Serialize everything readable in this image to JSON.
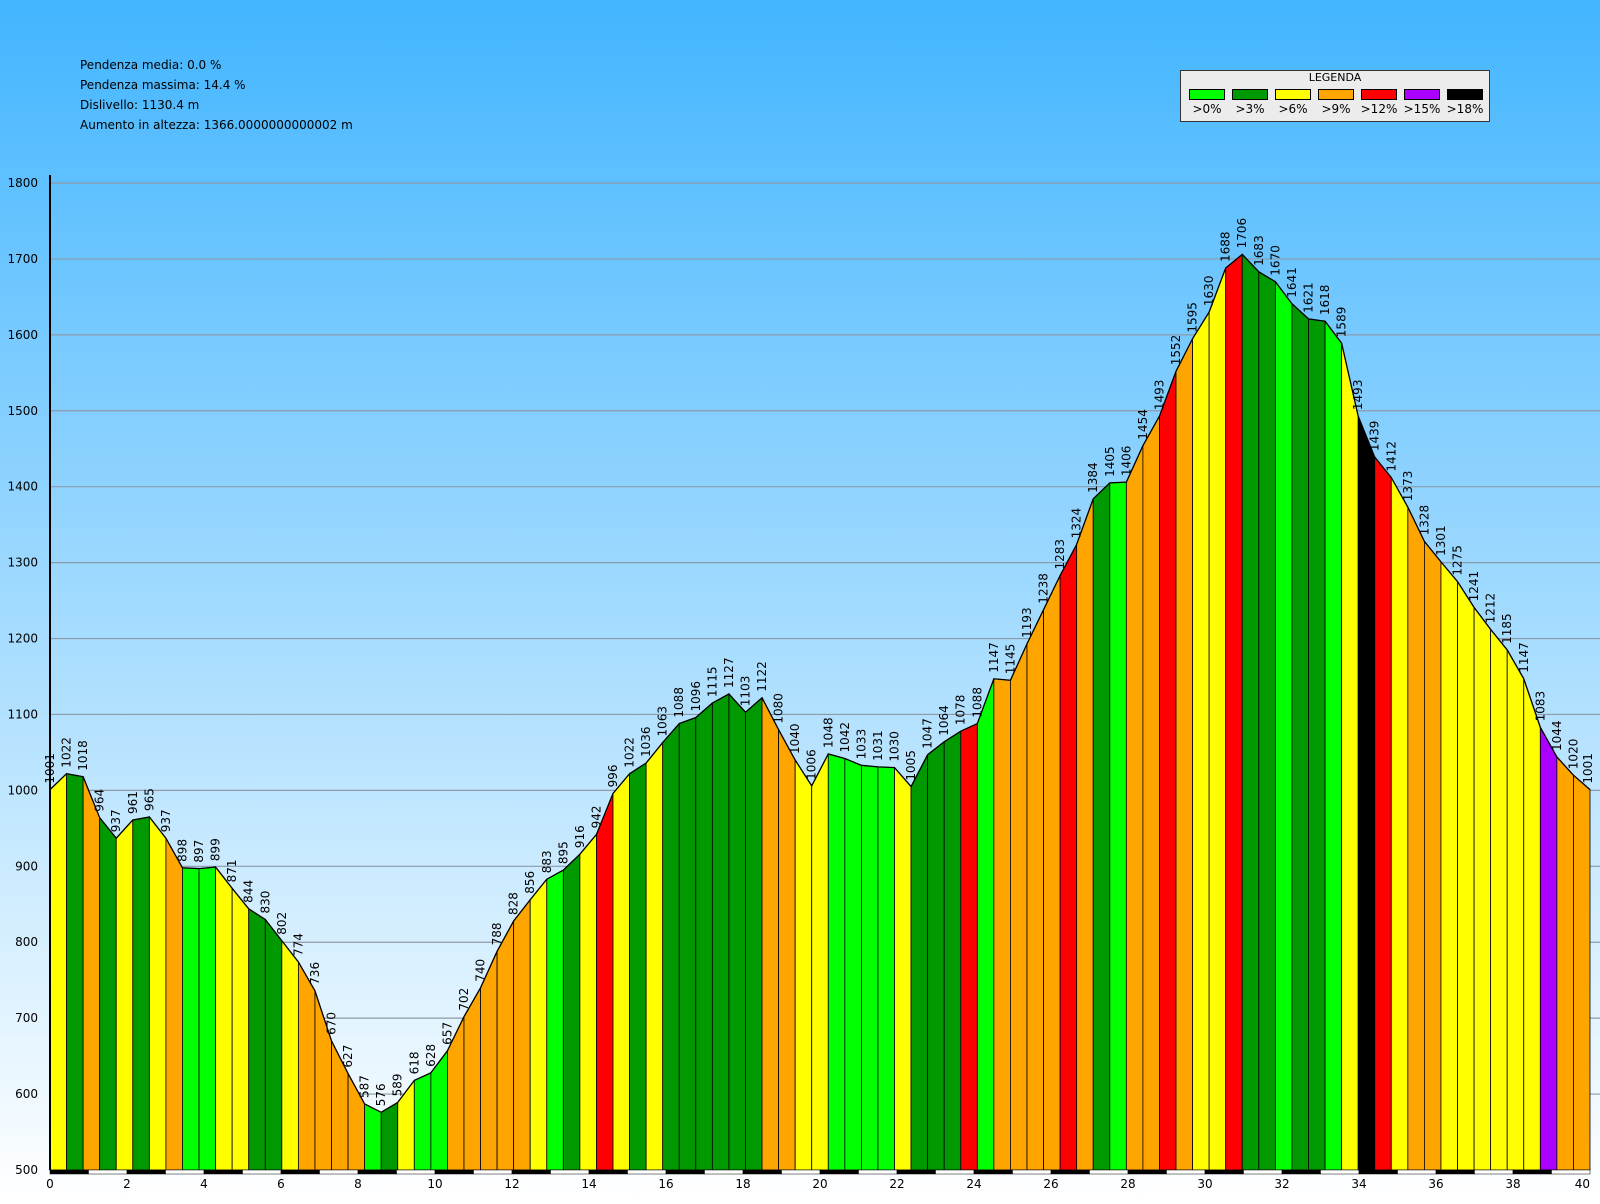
{
  "stats": {
    "avg_slope": "Pendenza media: 0.0 %",
    "max_slope": "Pendenza massima: 14.4 %",
    "drop": "Dislivello: 1130.4 m",
    "climb": "Aumento in altezza: 1366.0000000000002 m"
  },
  "legend": {
    "title": "LEGENDA",
    "items": [
      {
        "label": ">0%",
        "color": "#00ff00"
      },
      {
        "label": ">3%",
        "color": "#009900"
      },
      {
        "label": ">6%",
        "color": "#ffff00"
      },
      {
        "label": ">9%",
        "color": "#ffa500"
      },
      {
        "label": ">12%",
        "color": "#ff0000"
      },
      {
        "label": ">15%",
        "color": "#aa00ff"
      },
      {
        "label": ">18%",
        "color": "#000000"
      }
    ]
  },
  "colors": {
    "sky_top": "#42b5ff",
    "sky_bottom": "#ffffff",
    "grid": "#8c9aa8",
    "outline": "#000000"
  },
  "chart_data": {
    "type": "area",
    "xlabel": "",
    "ylabel": "",
    "xlim": [
      0,
      40
    ],
    "ylim": [
      500,
      1800
    ],
    "grid": true,
    "legend_position": "top-right",
    "x_ticks": [
      "0",
      "2",
      "4",
      "6",
      "8",
      "10",
      "12",
      "14",
      "16",
      "18",
      "20",
      "22",
      "24",
      "26",
      "28",
      "30",
      "32",
      "34",
      "36",
      "38",
      "40"
    ],
    "y_ticks": [
      "500",
      "600",
      "700",
      "800",
      "900",
      "1000",
      "1100",
      "1200",
      "1300",
      "1400",
      "1500",
      "1600",
      "1700",
      "1800"
    ],
    "elevation_labels": [
      "1001",
      "1022",
      "1018",
      "964",
      "937",
      "961",
      "965",
      "937",
      "898",
      "897",
      "899",
      "871",
      "844",
      "830",
      "802",
      "774",
      "736",
      "670",
      "627",
      "587",
      "576",
      "589",
      "618",
      "628",
      "657",
      "702",
      "740",
      "788",
      "828",
      "856",
      "883",
      "895",
      "916",
      "942",
      "996",
      "1022",
      "1036",
      "1063",
      "1088",
      "1096",
      "1115",
      "1127",
      "1103",
      "1122",
      "1080",
      "1040",
      "1006",
      "1048",
      "1042",
      "1033",
      "1031",
      "1030",
      "1005",
      "1047",
      "1064",
      "1078",
      "1088",
      "1147",
      "1145",
      "1193",
      "1238",
      "1283",
      "1324",
      "1384",
      "1405",
      "1406",
      "1454",
      "1493",
      "1552",
      "1595",
      "1630",
      "1688",
      "1706",
      "1683",
      "1670",
      "1641",
      "1621",
      "1618",
      "1589",
      "1493",
      "1439",
      "1412",
      "1373",
      "1328",
      "1301",
      "1275",
      "1241",
      "1212",
      "1185",
      "1147",
      "1083",
      "1044",
      "1020",
      "1001"
    ],
    "segment_classes": [
      3,
      2,
      4,
      2,
      3,
      2,
      3,
      4,
      1,
      1,
      3,
      3,
      2,
      2,
      3,
      4,
      4,
      4,
      4,
      1,
      2,
      3,
      1,
      1,
      4,
      4,
      4,
      4,
      4,
      3,
      1,
      2,
      3,
      5,
      3,
      2,
      3,
      2,
      2,
      2,
      2,
      2,
      2,
      4,
      4,
      3,
      3,
      1,
      1,
      1,
      1,
      3,
      2,
      2,
      2,
      5,
      1,
      4,
      4,
      4,
      4,
      5,
      4,
      2,
      1,
      4,
      4,
      5,
      4,
      3,
      3,
      5,
      2,
      2,
      1,
      2,
      2,
      1,
      3,
      7,
      5,
      3,
      4,
      4,
      3,
      3,
      3,
      3,
      3,
      3,
      6,
      4,
      4
    ]
  }
}
